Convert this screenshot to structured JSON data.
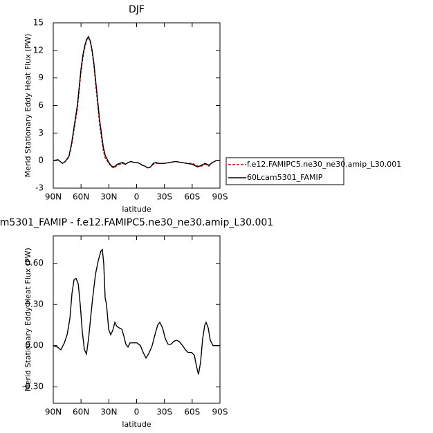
{
  "chart_data": [
    {
      "type": "line",
      "title": "DJF",
      "xlabel": "latitude",
      "ylabel": "Merid Stationary Eddy Heat Flux (PW)",
      "x": [
        90,
        85,
        80,
        77,
        73,
        70,
        67,
        64,
        62,
        60,
        58,
        56,
        54,
        52,
        50,
        48,
        46,
        44,
        42,
        40,
        38,
        36,
        34,
        32,
        30,
        27,
        24,
        21,
        18,
        15,
        12,
        9,
        6,
        3,
        0,
        -3,
        -6,
        -9,
        -12,
        -15,
        -18,
        -21,
        -24,
        -30,
        -36,
        -42,
        -48,
        -54,
        -60,
        -66,
        -70,
        -74,
        -78,
        -82,
        -86,
        -90
      ],
      "series": [
        {
          "name": "f.e12.FAMIPC5.ne30_ne30.amip_L30.001",
          "color": "#cc0000",
          "dash": true,
          "values": [
            0,
            0.1,
            -0.3,
            -0.1,
            0.4,
            1.8,
            3.7,
            5.6,
            7.6,
            9.7,
            11.2,
            12.3,
            13.1,
            13.4,
            12.9,
            11.8,
            10.2,
            8.1,
            6.0,
            4.0,
            2.5,
            1.1,
            0.3,
            0.0,
            -0.3,
            -0.7,
            -0.8,
            -0.5,
            -0.4,
            -0.3,
            -0.4,
            -0.2,
            -0.1,
            -0.2,
            -0.2,
            -0.3,
            -0.5,
            -0.6,
            -0.8,
            -0.7,
            -0.4,
            -0.3,
            -0.3,
            -0.3,
            -0.2,
            -0.1,
            -0.2,
            -0.3,
            -0.3,
            -0.6,
            -0.6,
            -0.4,
            -0.6,
            -0.2,
            0,
            0
          ]
        },
        {
          "name": "60Lcam5301_FAMIP",
          "color": "#000000",
          "dash": false,
          "values": [
            0,
            0.1,
            -0.3,
            -0.1,
            0.5,
            2,
            4,
            6,
            8,
            10,
            11.5,
            12.5,
            13.2,
            13.5,
            13.0,
            12,
            10.5,
            8.5,
            6.5,
            4.5,
            3,
            1.5,
            0.6,
            0.2,
            -0.2,
            -0.6,
            -0.7,
            -0.4,
            -0.3,
            -0.2,
            -0.4,
            -0.2,
            -0.1,
            -0.2,
            -0.2,
            -0.3,
            -0.5,
            -0.6,
            -0.8,
            -0.7,
            -0.3,
            -0.2,
            -0.3,
            -0.3,
            -0.2,
            -0.1,
            -0.2,
            -0.3,
            -0.4,
            -0.7,
            -0.5,
            -0.3,
            -0.5,
            -0.2,
            0,
            0
          ]
        }
      ],
      "xlim": [
        90,
        -90
      ],
      "ylim": [
        -3,
        15
      ],
      "xticks": [
        {
          "value": 90,
          "label": "90N"
        },
        {
          "value": 60,
          "label": "60N"
        },
        {
          "value": 30,
          "label": "30N"
        },
        0,
        {
          "value": -30,
          "label": "30S"
        },
        {
          "value": -60,
          "label": "60S"
        },
        {
          "value": -90,
          "label": "90S"
        }
      ],
      "yticks": [
        -3,
        0,
        3,
        6,
        9,
        12,
        15
      ],
      "legend": "right"
    },
    {
      "type": "line",
      "title": "m5301_FAMIP - f.e12.FAMIPC5.ne30_ne30.amip_L30.001",
      "xlabel": "latitude",
      "ylabel": "Merid Stationary Eddy Heat Flux (PW)",
      "x": [
        90,
        85.5,
        81.8,
        78,
        75,
        72,
        69.8,
        67.6,
        65.4,
        63,
        60.9,
        58.6,
        56.4,
        54.1,
        51.9,
        49.7,
        47.4,
        44.4,
        41.4,
        38.5,
        37,
        35.5,
        34,
        32.5,
        30.2,
        28,
        25.8,
        23.5,
        21.3,
        19,
        16,
        13.8,
        11.6,
        9.3,
        7.1,
        4.8,
        2.6,
        -0.4,
        -4.1,
        -7.1,
        -10.1,
        -13,
        -16.8,
        -19.8,
        -22.8,
        -25,
        -28,
        -31,
        -34,
        -37,
        -40,
        -43,
        -46,
        -49.7,
        -52.7,
        -55.6,
        -59.4,
        -62.4,
        -64.6,
        -66.8,
        -69.1,
        -71.3,
        -73.6,
        -75,
        -77.3,
        -79.5,
        -82.5,
        -86.3,
        -90
      ],
      "values": [
        0,
        -0.01,
        -0.03,
        0.02,
        0.08,
        0.2,
        0.38,
        0.48,
        0.49,
        0.45,
        0.3,
        0.1,
        -0.03,
        -0.06,
        0.05,
        0.2,
        0.35,
        0.52,
        0.62,
        0.69,
        0.7,
        0.6,
        0.35,
        0.3,
        0.12,
        0.08,
        0.11,
        0.17,
        0.14,
        0.13,
        0.12,
        0.07,
        0.01,
        -0.01,
        0.02,
        0.02,
        0.02,
        0.02,
        0,
        -0.05,
        -0.09,
        -0.06,
        0,
        0.08,
        0.15,
        0.17,
        0.13,
        0.05,
        0.01,
        0.01,
        0.03,
        0.04,
        0.03,
        0,
        -0.03,
        -0.05,
        -0.05,
        -0.07,
        -0.15,
        -0.21,
        -0.12,
        0.05,
        0.15,
        0.17,
        0.13,
        0.04,
        0,
        0,
        0
      ],
      "color": "#000000",
      "xlim": [
        90,
        -90
      ],
      "ylim": [
        -0.42,
        0.8
      ],
      "xticks": [
        {
          "value": 90,
          "label": "90N"
        },
        {
          "value": 60,
          "label": "60N"
        },
        {
          "value": 30,
          "label": "30N"
        },
        0,
        {
          "value": -30,
          "label": "30S"
        },
        {
          "value": -60,
          "label": "60S"
        },
        {
          "value": -90,
          "label": "90S"
        }
      ],
      "yticks": [
        {
          "value": -0.3,
          "label": "-0.30"
        },
        {
          "value": 0,
          "label": "0.00"
        },
        {
          "value": 0.3,
          "label": "0.30"
        },
        {
          "value": 0.6,
          "label": "0.60"
        }
      ]
    }
  ]
}
